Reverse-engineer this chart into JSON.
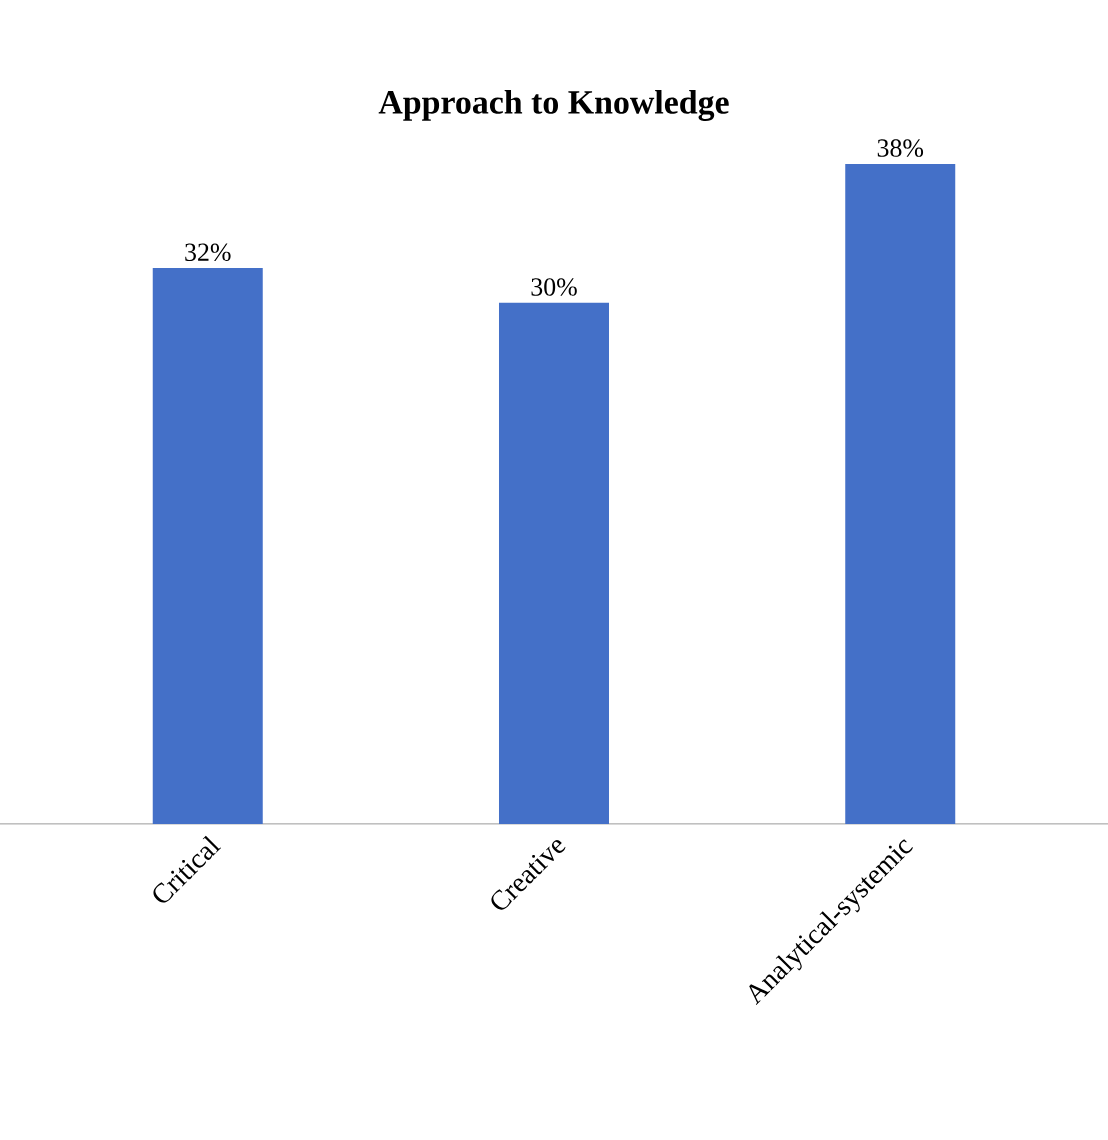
{
  "chart_data": {
    "type": "bar",
    "title": "Approach to Knowledge",
    "categories": [
      "Critical",
      "Creative",
      "Analytical-systemic"
    ],
    "values": [
      32,
      30,
      38
    ],
    "value_labels": [
      "32%",
      "30%",
      "38%"
    ],
    "color": "#4470c8"
  }
}
